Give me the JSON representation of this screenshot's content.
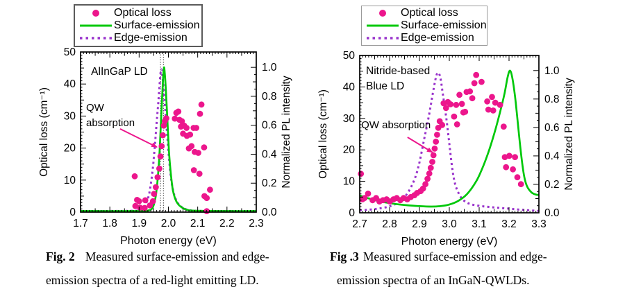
{
  "colors": {
    "scatter_pink": "#EC168C",
    "surface_green": "#00C80A",
    "edge_purple": "#9933CC",
    "vline_gray": "#444444",
    "axis_black": "#000000"
  },
  "legend": {
    "items": [
      {
        "label": "Optical loss",
        "marker": "dot",
        "color_key": "scatter_pink"
      },
      {
        "label": "Surface-emission",
        "marker": "solid",
        "color_key": "surface_green"
      },
      {
        "label": "Edge-emission",
        "marker": "dashed",
        "color_key": "edge_purple"
      }
    ]
  },
  "captions": [
    {
      "bold": "Fig. 2",
      "line1": "Measured surface-emission and edge-",
      "line2": "emission spectra of a red-light emitting LD."
    },
    {
      "bold": "Fig .3",
      "line1": "Measured surface-emission and edge-",
      "line2": "emission spectra of an InGaN-QWLDs."
    }
  ],
  "chart_data": [
    {
      "id": "fig2",
      "type": "line+scatter",
      "device_label_lines": [
        "AlInGaP LD"
      ],
      "device_label_pos": [
        1.736,
        42.9
      ],
      "xlabel": "Photon energy (eV)",
      "ylabel_left": "Optical loss (cm⁻¹)",
      "ylabel_right": "Normalized PL intensity",
      "xlim": [
        1.7,
        2.3
      ],
      "ylim_left": [
        0,
        50
      ],
      "ylim_right": [
        0,
        1
      ],
      "xtick_labels": [
        "1.7",
        "1.8",
        "1.9",
        "2.0",
        "2.1",
        "2.2",
        "2.3"
      ],
      "ytick_labels_left": [
        "0",
        "10",
        "20",
        "30",
        "40",
        "50"
      ],
      "ytick_labels_right": [
        "0.0",
        "0.2",
        "0.4",
        "0.6",
        "0.8",
        "1.0"
      ],
      "right_axis_scale": 45.2,
      "grid": false,
      "legend_position": "top-left-outside",
      "vlines": [
        1.973,
        1.983
      ],
      "annotation": {
        "lines": [
          "QW",
          "absorption"
        ],
        "pos": [
          1.719,
          31.6
        ],
        "arrow": [
          1.835,
          26.0,
          1.961,
          20.3
        ]
      },
      "scatter": {
        "name": "Optical loss",
        "unit": "cm-1",
        "points": [
          [
            1.885,
            11.2
          ],
          [
            1.887,
            1.9
          ],
          [
            1.893,
            3.8
          ],
          [
            1.9,
            3.4
          ],
          [
            1.903,
            1.4
          ],
          [
            1.919,
            1.3
          ],
          [
            1.921,
            3.7
          ],
          [
            1.937,
            2.1
          ],
          [
            1.947,
            3.4
          ],
          [
            1.951,
            5.7
          ],
          [
            1.957,
            7.8
          ],
          [
            1.963,
            10.9
          ],
          [
            1.969,
            13.6
          ],
          [
            1.973,
            17.4
          ],
          [
            1.977,
            20.6
          ],
          [
            1.981,
            24
          ],
          [
            1.984,
            27
          ],
          [
            1.988,
            28.4
          ],
          [
            1.993,
            29.3
          ],
          [
            2.022,
            29.2
          ],
          [
            2.027,
            31
          ],
          [
            2.034,
            31.4
          ],
          [
            2.038,
            28.8
          ],
          [
            2.043,
            26.7
          ],
          [
            2.046,
            28.4
          ],
          [
            2.05,
            24.5
          ],
          [
            2.054,
            27
          ],
          [
            2.062,
            26.3
          ],
          [
            2.063,
            23.8
          ],
          [
            2.07,
            19.9
          ],
          [
            2.074,
            24.2
          ],
          [
            2.079,
            20.6
          ],
          [
            2.086,
            26.3
          ],
          [
            2.087,
            13.1
          ],
          [
            2.09,
            18.8
          ],
          [
            2.095,
            26.3
          ],
          [
            2.102,
            18.5
          ],
          [
            2.106,
            12
          ],
          [
            2.108,
            30.7
          ],
          [
            2.113,
            33.6
          ],
          [
            2.122,
            20.2
          ],
          [
            2.123,
            5
          ],
          [
            2.131,
            4.4
          ],
          [
            2.131,
            0.3
          ],
          [
            2.142,
            7
          ]
        ]
      },
      "surface_emission": {
        "name": "Surface-emission",
        "points_normalized": [
          [
            1.7,
            0.007
          ],
          [
            1.9,
            0.007
          ],
          [
            1.93,
            0.011
          ],
          [
            1.945,
            0.027
          ],
          [
            1.955,
            0.09
          ],
          [
            1.962,
            0.2
          ],
          [
            1.968,
            0.35
          ],
          [
            1.973,
            0.55
          ],
          [
            1.978,
            0.77
          ],
          [
            1.982,
            0.93
          ],
          [
            1.985,
            1.0
          ],
          [
            1.988,
            0.95
          ],
          [
            1.992,
            0.82
          ],
          [
            1.997,
            0.62
          ],
          [
            2.002,
            0.42
          ],
          [
            2.008,
            0.27
          ],
          [
            2.015,
            0.155
          ],
          [
            2.023,
            0.093
          ],
          [
            2.032,
            0.058
          ],
          [
            2.042,
            0.038
          ],
          [
            2.055,
            0.022
          ],
          [
            2.07,
            0.013
          ],
          [
            2.1,
            0.009
          ],
          [
            2.2,
            0.007
          ],
          [
            2.3,
            0.007
          ]
        ]
      },
      "edge_emission": {
        "name": "Edge-emission",
        "points_normalized": [
          [
            1.7,
            0.007
          ],
          [
            1.88,
            0.009
          ],
          [
            1.9,
            0.018
          ],
          [
            1.915,
            0.033
          ],
          [
            1.925,
            0.066
          ],
          [
            1.935,
            0.133
          ],
          [
            1.945,
            0.27
          ],
          [
            1.953,
            0.44
          ],
          [
            1.96,
            0.62
          ],
          [
            1.966,
            0.77
          ],
          [
            1.971,
            0.91
          ],
          [
            1.975,
            0.985
          ],
          [
            1.979,
            0.95
          ],
          [
            1.984,
            0.84
          ],
          [
            1.99,
            0.69
          ],
          [
            1.996,
            0.53
          ],
          [
            2.003,
            0.35
          ],
          [
            2.01,
            0.22
          ],
          [
            2.018,
            0.133
          ],
          [
            2.028,
            0.077
          ],
          [
            2.04,
            0.044
          ],
          [
            2.055,
            0.024
          ],
          [
            2.08,
            0.011
          ],
          [
            2.15,
            0.007
          ],
          [
            2.3,
            0.006
          ]
        ]
      }
    },
    {
      "id": "fig3",
      "type": "line+scatter",
      "device_label_lines": [
        "Nitride-based",
        "Blue LD"
      ],
      "device_label_pos": [
        2.721,
        44.0
      ],
      "xlabel": "Photon energy (eV)",
      "ylabel_left": "Optical loss (cm⁻¹)",
      "ylabel_right": "Normalized PL intensity",
      "xlim": [
        2.7,
        3.3
      ],
      "ylim_left": [
        0,
        50
      ],
      "ylim_right": [
        0,
        1
      ],
      "xtick_labels": [
        "2.7",
        "2.8",
        "2.9",
        "3.0",
        "3.1",
        "3.2",
        "3.3"
      ],
      "ytick_labels_left": [
        "0",
        "10",
        "20",
        "30",
        "40",
        "50"
      ],
      "ytick_labels_right": [
        "0.0",
        "0.2",
        "0.4",
        "0.6",
        "0.8",
        "1.0"
      ],
      "right_axis_scale": 45.2,
      "grid": false,
      "legend_position": "top-left-outside",
      "vlines": [],
      "annotation": {
        "lines": [
          "QW absorption"
        ],
        "pos": [
          2.705,
          26.9
        ],
        "arrow": [
          2.86,
          24.0,
          2.944,
          19.2
        ]
      },
      "scatter": {
        "name": "Optical loss",
        "unit": "cm-1",
        "points": [
          [
            2.704,
            12.4
          ],
          [
            2.709,
            4.3
          ],
          [
            2.716,
            4.7
          ],
          [
            2.728,
            6.1
          ],
          [
            2.743,
            4
          ],
          [
            2.755,
            4.7
          ],
          [
            2.766,
            3.6
          ],
          [
            2.778,
            4
          ],
          [
            2.79,
            4.3
          ],
          [
            2.801,
            3.6
          ],
          [
            2.813,
            4.3
          ],
          [
            2.824,
            4.7
          ],
          [
            2.836,
            4
          ],
          [
            2.847,
            4.7
          ],
          [
            2.859,
            4.3
          ],
          [
            2.871,
            5
          ],
          [
            2.883,
            5.6
          ],
          [
            2.892,
            6.3
          ],
          [
            2.904,
            6.9
          ],
          [
            2.912,
            7.7
          ],
          [
            2.92,
            9.1
          ],
          [
            2.927,
            10.8
          ],
          [
            2.933,
            12.5
          ],
          [
            2.938,
            14.3
          ],
          [
            2.943,
            16.2
          ],
          [
            2.947,
            18.3
          ],
          [
            2.951,
            20.4
          ],
          [
            2.955,
            22.6
          ],
          [
            2.959,
            24.8
          ],
          [
            2.963,
            27
          ],
          [
            2.968,
            29.1
          ],
          [
            2.976,
            27.9
          ],
          [
            2.981,
            34.8
          ],
          [
            2.989,
            33.3
          ],
          [
            2.995,
            35.2
          ],
          [
            3.004,
            34.5
          ],
          [
            3.016,
            30.6
          ],
          [
            3.023,
            34.3
          ],
          [
            3.026,
            28.1
          ],
          [
            3.034,
            37.5
          ],
          [
            3.042,
            34.6
          ],
          [
            3.047,
            31.9
          ],
          [
            3.053,
            32.1
          ],
          [
            3.058,
            38.4
          ],
          [
            3.069,
            38.6
          ],
          [
            3.077,
            36.4
          ],
          [
            3.084,
            41.2
          ],
          [
            3.09,
            43.8
          ],
          [
            3.108,
            41.6
          ],
          [
            3.127,
            35.4
          ],
          [
            3.131,
            32.8
          ],
          [
            3.143,
            36.8
          ],
          [
            3.147,
            32.5
          ],
          [
            3.154,
            35
          ],
          [
            3.17,
            34.3
          ],
          [
            3.182,
            27.4
          ],
          [
            3.186,
            17.7
          ],
          [
            3.19,
            14.5
          ],
          [
            3.201,
            18.1
          ],
          [
            3.213,
            13.8
          ],
          [
            3.22,
            17.7
          ],
          [
            3.228,
            11.3
          ],
          [
            3.24,
            9.1
          ]
        ]
      },
      "surface_emission": {
        "name": "Surface-emission",
        "points_normalized": [
          [
            2.7,
            0.122
          ],
          [
            2.74,
            0.095
          ],
          [
            2.78,
            0.075
          ],
          [
            2.82,
            0.062
          ],
          [
            2.86,
            0.053
          ],
          [
            2.9,
            0.047
          ],
          [
            2.94,
            0.044
          ],
          [
            2.97,
            0.047
          ],
          [
            3.0,
            0.058
          ],
          [
            3.03,
            0.084
          ],
          [
            3.06,
            0.133
          ],
          [
            3.09,
            0.221
          ],
          [
            3.11,
            0.31
          ],
          [
            3.13,
            0.42
          ],
          [
            3.15,
            0.553
          ],
          [
            3.17,
            0.708
          ],
          [
            3.185,
            0.84
          ],
          [
            3.195,
            0.95
          ],
          [
            3.203,
            1.0
          ],
          [
            3.211,
            0.95
          ],
          [
            3.22,
            0.82
          ],
          [
            3.23,
            0.62
          ],
          [
            3.24,
            0.42
          ],
          [
            3.25,
            0.265
          ],
          [
            3.26,
            0.188
          ],
          [
            3.275,
            0.144
          ],
          [
            3.29,
            0.128
          ],
          [
            3.3,
            0.126
          ]
        ]
      },
      "edge_emission": {
        "name": "Edge-emission",
        "points_normalized": [
          [
            2.7,
            0.018
          ],
          [
            2.73,
            0.022
          ],
          [
            2.76,
            0.029
          ],
          [
            2.79,
            0.04
          ],
          [
            2.82,
            0.062
          ],
          [
            2.845,
            0.1
          ],
          [
            2.865,
            0.155
          ],
          [
            2.885,
            0.243
          ],
          [
            2.9,
            0.354
          ],
          [
            2.915,
            0.509
          ],
          [
            2.93,
            0.664
          ],
          [
            2.945,
            0.841
          ],
          [
            2.955,
            0.951
          ],
          [
            2.962,
            0.985
          ],
          [
            2.97,
            0.951
          ],
          [
            2.978,
            0.841
          ],
          [
            2.99,
            0.664
          ],
          [
            3.0,
            0.487
          ],
          [
            3.01,
            0.31
          ],
          [
            3.02,
            0.199
          ],
          [
            3.035,
            0.122
          ],
          [
            3.05,
            0.084
          ],
          [
            3.07,
            0.062
          ],
          [
            3.1,
            0.049
          ],
          [
            3.15,
            0.038
          ],
          [
            3.2,
            0.029
          ],
          [
            3.25,
            0.02
          ],
          [
            3.3,
            0.013
          ]
        ]
      }
    }
  ]
}
